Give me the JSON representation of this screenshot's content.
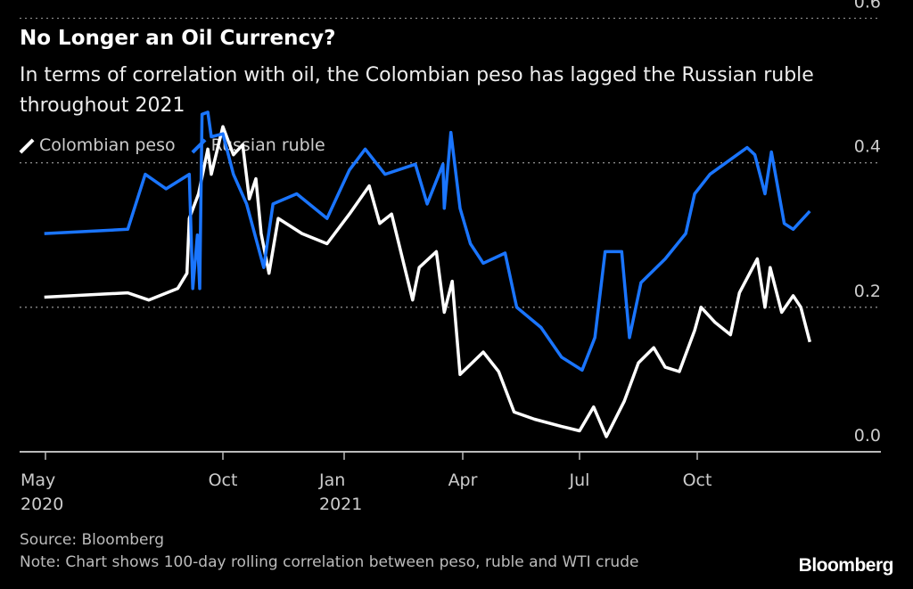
{
  "chart_data": {
    "type": "line",
    "title": "No Longer an Oil Currency?",
    "subtitle": "In terms of correlation with oil, the Colombian peso has lagged the Russian ruble throughout 2021",
    "xlabel": "",
    "ylabel": "",
    "ylim": [
      0,
      0.6
    ],
    "yticks": [
      "0.0",
      "0.2",
      "0.4",
      "0.6"
    ],
    "xticks": [
      {
        "date": "2020-05-01",
        "label": "May",
        "sublabel": "2020"
      },
      {
        "date": "2020-10-01",
        "label": "Oct",
        "sublabel": ""
      },
      {
        "date": "2021-01-01",
        "label": "Jan",
        "sublabel": "2021"
      },
      {
        "date": "2021-04-01",
        "label": "Apr",
        "sublabel": ""
      },
      {
        "date": "2021-07-01",
        "label": "Jul",
        "sublabel": ""
      },
      {
        "date": "2021-10-01",
        "label": "Oct",
        "sublabel": ""
      }
    ],
    "grid": "horizontal dotted",
    "legend_placement": "top-left",
    "series": [
      {
        "name": "Colombian peso",
        "color": "#ffffff",
        "points": [
          [
            "2020-04-30",
            0.214
          ],
          [
            "2020-07-11",
            0.22
          ],
          [
            "2020-07-29",
            0.21
          ],
          [
            "2020-08-23",
            0.226
          ],
          [
            "2020-08-31",
            0.247
          ],
          [
            "2020-09-02",
            0.323
          ],
          [
            "2020-09-10",
            0.357
          ],
          [
            "2020-09-18",
            0.419
          ],
          [
            "2020-09-21",
            0.384
          ],
          [
            "2020-10-01",
            0.45
          ],
          [
            "2020-10-09",
            0.411
          ],
          [
            "2020-10-16",
            0.425
          ],
          [
            "2020-10-21",
            0.35
          ],
          [
            "2020-10-26",
            0.378
          ],
          [
            "2020-10-30",
            0.302
          ],
          [
            "2020-11-05",
            0.247
          ],
          [
            "2020-11-12",
            0.323
          ],
          [
            "2020-11-30",
            0.302
          ],
          [
            "2020-12-19",
            0.288
          ],
          [
            "2021-01-05",
            0.329
          ],
          [
            "2021-01-20",
            0.368
          ],
          [
            "2021-01-28",
            0.316
          ],
          [
            "2021-02-06",
            0.329
          ],
          [
            "2021-02-22",
            0.21
          ],
          [
            "2021-02-27",
            0.255
          ],
          [
            "2021-03-12",
            0.277
          ],
          [
            "2021-03-18",
            0.193
          ],
          [
            "2021-03-24",
            0.236
          ],
          [
            "2021-03-30",
            0.107
          ],
          [
            "2021-04-17",
            0.138
          ],
          [
            "2021-04-29",
            0.111
          ],
          [
            "2021-05-11",
            0.055
          ],
          [
            "2021-05-27",
            0.045
          ],
          [
            "2021-06-17",
            0.035
          ],
          [
            "2021-07-01",
            0.029
          ],
          [
            "2021-07-12",
            0.062
          ],
          [
            "2021-07-22",
            0.021
          ],
          [
            "2021-08-05",
            0.07
          ],
          [
            "2021-08-16",
            0.123
          ],
          [
            "2021-08-28",
            0.144
          ],
          [
            "2021-09-06",
            0.117
          ],
          [
            "2021-09-17",
            0.111
          ],
          [
            "2021-09-29",
            0.168
          ],
          [
            "2021-10-04",
            0.2
          ],
          [
            "2021-10-15",
            0.179
          ],
          [
            "2021-10-27",
            0.162
          ],
          [
            "2021-11-03",
            0.22
          ],
          [
            "2021-11-17",
            0.267
          ],
          [
            "2021-11-23",
            0.2
          ],
          [
            "2021-11-27",
            0.255
          ],
          [
            "2021-12-06",
            0.193
          ],
          [
            "2021-12-15",
            0.216
          ],
          [
            "2021-12-21",
            0.2
          ],
          [
            "2021-12-28",
            0.152
          ]
        ]
      },
      {
        "name": "Russian ruble",
        "color": "#1a75ff",
        "points": [
          [
            "2020-04-30",
            0.302
          ],
          [
            "2020-07-11",
            0.308
          ],
          [
            "2020-07-26",
            0.384
          ],
          [
            "2020-08-13",
            0.364
          ],
          [
            "2020-09-02",
            0.384
          ],
          [
            "2020-09-05",
            0.226
          ],
          [
            "2020-09-09",
            0.3
          ],
          [
            "2020-09-11",
            0.226
          ],
          [
            "2020-09-13",
            0.467
          ],
          [
            "2020-09-18",
            0.47
          ],
          [
            "2020-09-21",
            0.436
          ],
          [
            "2020-10-01",
            0.44
          ],
          [
            "2020-10-09",
            0.384
          ],
          [
            "2020-10-19",
            0.343
          ],
          [
            "2020-11-01",
            0.255
          ],
          [
            "2020-11-08",
            0.343
          ],
          [
            "2020-11-26",
            0.357
          ],
          [
            "2020-12-19",
            0.323
          ],
          [
            "2021-01-05",
            0.39
          ],
          [
            "2021-01-17",
            0.419
          ],
          [
            "2021-02-01",
            0.384
          ],
          [
            "2021-02-24",
            0.398
          ],
          [
            "2021-03-05",
            0.343
          ],
          [
            "2021-03-17",
            0.398
          ],
          [
            "2021-03-18",
            0.337
          ],
          [
            "2021-03-23",
            0.442
          ],
          [
            "2021-03-30",
            0.337
          ],
          [
            "2021-04-07",
            0.288
          ],
          [
            "2021-04-17",
            0.261
          ],
          [
            "2021-05-04",
            0.275
          ],
          [
            "2021-05-13",
            0.2
          ],
          [
            "2021-06-01",
            0.172
          ],
          [
            "2021-06-17",
            0.131
          ],
          [
            "2021-07-03",
            0.113
          ],
          [
            "2021-07-13",
            0.158
          ],
          [
            "2021-07-21",
            0.277
          ],
          [
            "2021-08-03",
            0.277
          ],
          [
            "2021-08-09",
            0.158
          ],
          [
            "2021-08-18",
            0.234
          ],
          [
            "2021-09-06",
            0.267
          ],
          [
            "2021-09-22",
            0.302
          ],
          [
            "2021-09-29",
            0.357
          ],
          [
            "2021-10-11",
            0.384
          ],
          [
            "2021-11-09",
            0.421
          ],
          [
            "2021-11-15",
            0.411
          ],
          [
            "2021-11-23",
            0.357
          ],
          [
            "2021-11-28",
            0.415
          ],
          [
            "2021-12-08",
            0.316
          ],
          [
            "2021-12-15",
            0.308
          ],
          [
            "2021-12-28",
            0.333
          ]
        ]
      }
    ]
  },
  "footer": {
    "source": "Source: Bloomberg",
    "note": "Note: Chart shows 100-day rolling correlation between peso, ruble and WTI crude",
    "logo": "Bloomberg"
  }
}
